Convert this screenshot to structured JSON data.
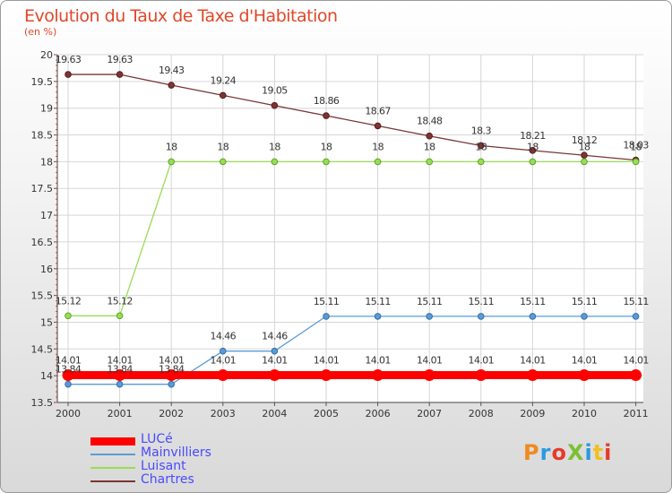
{
  "title": "Evolution du Taux de Taxe d'Habitation",
  "unit": "(en %)",
  "logo": {
    "text": "ProXiti",
    "colors": [
      "#f08a1f",
      "#2a9adf",
      "#e63a2a",
      "#7dbf34",
      "#2a9adf",
      "#f0c020",
      "#e63a2a"
    ]
  },
  "chart_data": {
    "type": "line",
    "title": "Evolution du Taux de Taxe d'Habitation",
    "ylabel": "(en %)",
    "xlabel": "",
    "categories": [
      "2000",
      "2001",
      "2002",
      "2003",
      "2004",
      "2005",
      "2006",
      "2007",
      "2008",
      "2009",
      "2010",
      "2011"
    ],
    "ylim": [
      13.5,
      20
    ],
    "yticks": [
      "13.5",
      "14",
      "14.5",
      "15",
      "15.5",
      "16",
      "16.5",
      "17",
      "17.5",
      "18",
      "18.5",
      "19",
      "19.5",
      "20"
    ],
    "grid": true,
    "legend_position": "bottom-left",
    "series": [
      {
        "name": "LUCé",
        "color": "#ff0000",
        "values": [
          14.01,
          14.01,
          14.01,
          14.01,
          14.01,
          14.01,
          14.01,
          14.01,
          14.01,
          14.01,
          14.01,
          14.01
        ],
        "labels": [
          "14.01",
          "14.01",
          "14.01",
          "14.01",
          "14.01",
          "14.01",
          "14.01",
          "14.01",
          "14.01",
          "14.01",
          "14.01",
          "14.01"
        ]
      },
      {
        "name": "Mainvilliers",
        "color": "#5b9bd5",
        "values": [
          13.84,
          13.84,
          13.84,
          14.46,
          14.46,
          15.11,
          15.11,
          15.11,
          15.11,
          15.11,
          15.11,
          15.11
        ],
        "labels": [
          "13.84",
          "13.84",
          "13.84",
          "14.46",
          "14.46",
          "15.11",
          "15.11",
          "15.11",
          "15.11",
          "15.11",
          "15.11",
          "15.11"
        ]
      },
      {
        "name": "Luisant",
        "color": "#99dd55",
        "values": [
          15.12,
          15.12,
          18,
          18,
          18,
          18,
          18,
          18,
          18,
          18,
          18,
          18
        ],
        "labels": [
          "15.12",
          "15.12",
          "18",
          "18",
          "18",
          "18",
          "18",
          "18",
          "18",
          "18",
          "18",
          "18"
        ]
      },
      {
        "name": "Chartres",
        "color": "#7a3535",
        "values": [
          19.63,
          19.63,
          19.43,
          19.24,
          19.05,
          18.86,
          18.67,
          18.48,
          18.3,
          18.21,
          18.12,
          18.03
        ],
        "labels": [
          "19.63",
          "19.63",
          "19.43",
          "19.24",
          "19.05",
          "18.86",
          "18.67",
          "18.48",
          "18.3",
          "18.21",
          "18.12",
          "18.03"
        ]
      }
    ]
  }
}
